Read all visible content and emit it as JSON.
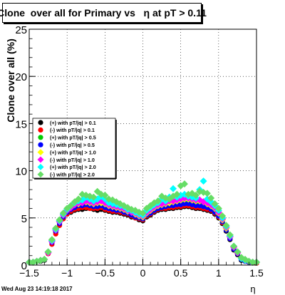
{
  "chart_data": {
    "type": "scatter",
    "title": "Clone  over all for Primary vs   η at pT > 0.11",
    "xlabel": "η",
    "ylabel": "Clone   over all (%)",
    "xlim": [
      -1.5,
      1.5
    ],
    "ylim": [
      0,
      25
    ],
    "x_ticks": [
      "−1.5",
      "−1",
      "−0.5",
      "0",
      "0.5",
      "1",
      "1.5"
    ],
    "y_ticks": [
      "0",
      "5",
      "10",
      "15",
      "20",
      "25"
    ],
    "grid": true,
    "legend_position": "left-center",
    "timestamp": "Wed Aug 23 14:19:18 2017",
    "series": [
      {
        "name": "(+) with pT/|q| > 0.1",
        "color": "#000000",
        "marker": "circle",
        "x": [
          -1.5,
          -1.45,
          -1.4,
          -1.35,
          -1.3,
          -1.25,
          -1.2,
          -1.15,
          -1.1,
          -1.05,
          -1.0,
          -0.95,
          -0.9,
          -0.85,
          -0.8,
          -0.75,
          -0.7,
          -0.65,
          -0.6,
          -0.55,
          -0.5,
          -0.45,
          -0.4,
          -0.35,
          -0.3,
          -0.25,
          -0.2,
          -0.15,
          -0.1,
          -0.05,
          0.0,
          0.05,
          0.1,
          0.15,
          0.2,
          0.25,
          0.3,
          0.35,
          0.4,
          0.45,
          0.5,
          0.55,
          0.6,
          0.65,
          0.7,
          0.75,
          0.8,
          0.85,
          0.9,
          0.95,
          1.0,
          1.05,
          1.1,
          1.15,
          1.2,
          1.25,
          1.3,
          1.35,
          1.4,
          1.45,
          1.5
        ],
        "y": [
          0.3,
          0.3,
          0.4,
          0.4,
          0.5,
          1.3,
          2.4,
          3.5,
          4.3,
          5.0,
          5.4,
          5.6,
          5.8,
          5.9,
          5.9,
          6.0,
          6.0,
          5.9,
          5.8,
          5.9,
          5.8,
          5.7,
          5.6,
          5.6,
          5.5,
          5.4,
          5.3,
          5.1,
          5.0,
          4.8,
          4.7,
          5.1,
          5.3,
          5.6,
          5.8,
          5.9,
          5.9,
          6.0,
          6.0,
          6.1,
          6.1,
          6.2,
          6.2,
          6.1,
          6.0,
          6.0,
          5.9,
          5.8,
          5.7,
          5.4,
          5.0,
          4.4,
          3.6,
          2.7,
          1.6,
          1.1,
          0.5,
          0.4,
          0.3,
          0.3,
          0.2
        ]
      },
      {
        "name": "(-) with pT/|q| > 0.1",
        "color": "#ff0000",
        "marker": "circle",
        "x": [
          -1.5,
          -1.45,
          -1.4,
          -1.35,
          -1.3,
          -1.25,
          -1.2,
          -1.15,
          -1.1,
          -1.05,
          -1.0,
          -0.95,
          -0.9,
          -0.85,
          -0.8,
          -0.75,
          -0.7,
          -0.65,
          -0.6,
          -0.55,
          -0.5,
          -0.45,
          -0.4,
          -0.35,
          -0.3,
          -0.25,
          -0.2,
          -0.15,
          -0.1,
          -0.05,
          0.0,
          0.05,
          0.1,
          0.15,
          0.2,
          0.25,
          0.3,
          0.35,
          0.4,
          0.45,
          0.5,
          0.55,
          0.6,
          0.65,
          0.7,
          0.75,
          0.8,
          0.85,
          0.9,
          0.95,
          1.0,
          1.05,
          1.1,
          1.15,
          1.2,
          1.25,
          1.3,
          1.35,
          1.4,
          1.45,
          1.5
        ],
        "y": [
          0.3,
          0.3,
          0.4,
          0.5,
          0.6,
          1.2,
          2.2,
          3.3,
          4.2,
          4.9,
          5.4,
          5.7,
          5.9,
          6.0,
          6.1,
          6.1,
          6.0,
          6.0,
          6.0,
          6.1,
          5.9,
          5.8,
          5.7,
          5.7,
          5.6,
          5.5,
          5.4,
          5.2,
          5.0,
          4.9,
          4.8,
          5.2,
          5.4,
          5.7,
          5.9,
          6.0,
          6.0,
          6.1,
          6.1,
          6.2,
          6.2,
          6.3,
          6.3,
          6.2,
          6.1,
          6.1,
          6.0,
          5.9,
          5.8,
          5.5,
          5.1,
          4.5,
          3.7,
          2.8,
          1.7,
          1.2,
          0.6,
          0.4,
          0.3,
          0.3,
          0.2
        ]
      },
      {
        "name": "(+) with pT/|q| > 0.5",
        "color": "#00cc00",
        "marker": "circle",
        "x": [
          -1.5,
          -1.45,
          -1.4,
          -1.35,
          -1.3,
          -1.25,
          -1.2,
          -1.15,
          -1.1,
          -1.05,
          -1.0,
          -0.95,
          -0.9,
          -0.85,
          -0.8,
          -0.75,
          -0.7,
          -0.65,
          -0.6,
          -0.55,
          -0.5,
          -0.45,
          -0.4,
          -0.35,
          -0.3,
          -0.25,
          -0.2,
          -0.15,
          -0.1,
          -0.05,
          0.0,
          0.05,
          0.1,
          0.15,
          0.2,
          0.25,
          0.3,
          0.35,
          0.4,
          0.45,
          0.5,
          0.55,
          0.6,
          0.65,
          0.7,
          0.75,
          0.8,
          0.85,
          0.9,
          0.95,
          1.0,
          1.05,
          1.1,
          1.15,
          1.2,
          1.25,
          1.3,
          1.35,
          1.4,
          1.45,
          1.5
        ],
        "y": [
          0.3,
          0.3,
          0.4,
          0.5,
          0.6,
          1.4,
          2.5,
          3.7,
          4.5,
          5.2,
          5.7,
          6.0,
          6.2,
          6.3,
          6.4,
          6.4,
          6.3,
          6.3,
          6.3,
          6.3,
          6.2,
          6.1,
          6.0,
          5.9,
          5.8,
          5.7,
          5.5,
          5.4,
          5.2,
          5.0,
          4.9,
          5.3,
          5.6,
          5.9,
          6.1,
          6.2,
          6.3,
          6.3,
          6.4,
          6.5,
          6.5,
          6.6,
          6.6,
          6.5,
          6.4,
          6.4,
          6.3,
          6.2,
          6.0,
          5.7,
          5.3,
          4.6,
          3.8,
          2.9,
          1.8,
          1.2,
          0.6,
          0.5,
          0.4,
          0.3,
          0.3
        ]
      },
      {
        "name": "(-) with pT/|q| > 0.5",
        "color": "#0000ff",
        "marker": "circle",
        "x": [
          -1.5,
          -1.45,
          -1.4,
          -1.35,
          -1.3,
          -1.25,
          -1.2,
          -1.15,
          -1.1,
          -1.05,
          -1.0,
          -0.95,
          -0.9,
          -0.85,
          -0.8,
          -0.75,
          -0.7,
          -0.65,
          -0.6,
          -0.55,
          -0.5,
          -0.45,
          -0.4,
          -0.35,
          -0.3,
          -0.25,
          -0.2,
          -0.15,
          -0.1,
          -0.05,
          0.0,
          0.05,
          0.1,
          0.15,
          0.2,
          0.25,
          0.3,
          0.35,
          0.4,
          0.45,
          0.5,
          0.55,
          0.6,
          0.65,
          0.7,
          0.75,
          0.8,
          0.85,
          0.9,
          0.95,
          1.0,
          1.05,
          1.1,
          1.15,
          1.2,
          1.25,
          1.3,
          1.35,
          1.4,
          1.45,
          1.5
        ],
        "y": [
          0.3,
          0.3,
          0.4,
          0.5,
          0.6,
          1.3,
          2.4,
          3.6,
          4.4,
          5.1,
          5.6,
          5.9,
          6.1,
          6.3,
          6.3,
          6.4,
          6.3,
          6.2,
          6.2,
          6.3,
          6.1,
          6.0,
          5.9,
          5.8,
          5.8,
          5.6,
          5.5,
          5.3,
          5.1,
          5.0,
          4.9,
          5.3,
          5.5,
          5.8,
          6.0,
          6.1,
          6.2,
          6.3,
          6.3,
          6.4,
          6.4,
          6.5,
          6.5,
          6.4,
          6.3,
          6.3,
          6.2,
          6.1,
          5.9,
          5.6,
          5.2,
          4.6,
          3.7,
          2.8,
          1.7,
          1.2,
          0.6,
          0.4,
          0.3,
          0.3,
          0.3
        ]
      },
      {
        "name": "(+) with pT/|q| > 1.0",
        "color": "#ffff00",
        "marker": "diamond",
        "x": [
          -1.5,
          -1.45,
          -1.4,
          -1.35,
          -1.3,
          -1.25,
          -1.2,
          -1.15,
          -1.1,
          -1.05,
          -1.0,
          -0.95,
          -0.9,
          -0.85,
          -0.8,
          -0.75,
          -0.7,
          -0.65,
          -0.6,
          -0.55,
          -0.5,
          -0.45,
          -0.4,
          -0.35,
          -0.3,
          -0.25,
          -0.2,
          -0.15,
          -0.1,
          -0.05,
          0.0,
          0.05,
          0.1,
          0.15,
          0.2,
          0.25,
          0.3,
          0.35,
          0.4,
          0.45,
          0.5,
          0.55,
          0.6,
          0.65,
          0.7,
          0.75,
          0.8,
          0.85,
          0.9,
          0.95,
          1.0,
          1.05,
          1.1,
          1.15,
          1.2,
          1.25,
          1.3,
          1.35,
          1.4,
          1.45,
          1.5
        ],
        "y": [
          0.3,
          0.3,
          0.4,
          0.5,
          0.6,
          1.4,
          2.6,
          3.8,
          4.6,
          5.3,
          5.8,
          6.1,
          6.4,
          6.5,
          6.6,
          6.7,
          6.6,
          6.5,
          6.6,
          6.6,
          6.5,
          6.3,
          6.2,
          6.1,
          6.0,
          5.9,
          5.7,
          5.6,
          5.4,
          5.2,
          5.1,
          5.5,
          5.8,
          6.1,
          6.3,
          6.4,
          6.5,
          6.6,
          6.7,
          6.8,
          6.9,
          7.0,
          7.0,
          6.9,
          6.8,
          6.8,
          6.7,
          6.5,
          6.3,
          6.0,
          5.5,
          4.8,
          3.9,
          3.0,
          1.9,
          1.3,
          0.7,
          0.5,
          0.4,
          0.3,
          0.3
        ]
      },
      {
        "name": "(-) with pT/|q| > 1.0",
        "color": "#ff00ff",
        "marker": "diamond",
        "x": [
          -1.5,
          -1.45,
          -1.4,
          -1.35,
          -1.3,
          -1.25,
          -1.2,
          -1.15,
          -1.1,
          -1.05,
          -1.0,
          -0.95,
          -0.9,
          -0.85,
          -0.8,
          -0.75,
          -0.7,
          -0.65,
          -0.6,
          -0.55,
          -0.5,
          -0.45,
          -0.4,
          -0.35,
          -0.3,
          -0.25,
          -0.2,
          -0.15,
          -0.1,
          -0.05,
          0.0,
          0.05,
          0.1,
          0.15,
          0.2,
          0.25,
          0.3,
          0.35,
          0.4,
          0.45,
          0.5,
          0.55,
          0.6,
          0.65,
          0.7,
          0.75,
          0.8,
          0.85,
          0.9,
          0.95,
          1.0,
          1.05,
          1.1,
          1.15,
          1.2,
          1.25,
          1.3,
          1.35,
          1.4,
          1.45,
          1.5
        ],
        "y": [
          0.3,
          0.3,
          0.4,
          0.5,
          0.6,
          1.3,
          2.5,
          3.7,
          4.6,
          5.3,
          5.8,
          6.1,
          6.4,
          6.6,
          6.6,
          6.8,
          6.7,
          6.6,
          6.7,
          6.8,
          6.6,
          6.4,
          6.3,
          6.2,
          6.1,
          6.0,
          5.8,
          5.6,
          5.5,
          5.3,
          5.2,
          5.6,
          5.9,
          6.2,
          6.4,
          6.5,
          6.6,
          6.8,
          6.8,
          6.9,
          7.0,
          7.1,
          7.1,
          7.0,
          6.9,
          6.9,
          6.7,
          6.6,
          6.4,
          6.1,
          5.6,
          4.9,
          4.0,
          3.0,
          1.9,
          1.3,
          0.7,
          0.5,
          0.4,
          0.3,
          0.3
        ]
      },
      {
        "name": "(+) with pT/|q| > 2.0",
        "color": "#00ffff",
        "marker": "diamond",
        "x": [
          -1.5,
          -1.45,
          -1.4,
          -1.35,
          -1.3,
          -1.25,
          -1.2,
          -1.15,
          -1.1,
          -1.05,
          -1.0,
          -0.95,
          -0.9,
          -0.85,
          -0.8,
          -0.75,
          -0.7,
          -0.65,
          -0.6,
          -0.55,
          -0.5,
          -0.45,
          -0.4,
          -0.35,
          -0.3,
          -0.25,
          -0.2,
          -0.15,
          -0.1,
          -0.05,
          0.0,
          0.05,
          0.1,
          0.15,
          0.2,
          0.25,
          0.3,
          0.35,
          0.4,
          0.45,
          0.5,
          0.55,
          0.6,
          0.65,
          0.7,
          0.75,
          0.8,
          0.85,
          0.9,
          0.95,
          1.0,
          1.05,
          1.1,
          1.15,
          1.2,
          1.25,
          1.3,
          1.35,
          1.4,
          1.45,
          1.5
        ],
        "y": [
          0.3,
          0.3,
          0.4,
          0.5,
          0.6,
          1.4,
          2.6,
          3.8,
          4.7,
          5.4,
          5.9,
          6.3,
          6.6,
          6.8,
          6.9,
          7.2,
          7.0,
          6.8,
          7.0,
          7.3,
          7.0,
          6.6,
          6.5,
          6.4,
          6.3,
          6.2,
          5.9,
          5.8,
          5.6,
          5.4,
          5.3,
          5.8,
          6.1,
          6.4,
          6.6,
          7.0,
          6.8,
          7.2,
          8.1,
          7.2,
          7.4,
          7.5,
          7.3,
          7.2,
          7.1,
          8.0,
          8.9,
          7.0,
          6.7,
          6.3,
          5.8,
          5.0,
          4.1,
          3.1,
          2.0,
          1.4,
          0.7,
          0.5,
          0.4,
          0.3,
          0.3
        ]
      },
      {
        "name": "(-) with pT/|q| > 2.0",
        "color": "#66dd66",
        "marker": "diamond",
        "x": [
          -1.5,
          -1.45,
          -1.4,
          -1.35,
          -1.3,
          -1.25,
          -1.2,
          -1.15,
          -1.1,
          -1.05,
          -1.0,
          -0.95,
          -0.9,
          -0.85,
          -0.8,
          -0.75,
          -0.7,
          -0.65,
          -0.6,
          -0.55,
          -0.5,
          -0.45,
          -0.4,
          -0.35,
          -0.3,
          -0.25,
          -0.2,
          -0.15,
          -0.1,
          -0.05,
          0.0,
          0.05,
          0.1,
          0.15,
          0.2,
          0.25,
          0.3,
          0.35,
          0.4,
          0.45,
          0.5,
          0.55,
          0.6,
          0.65,
          0.7,
          0.75,
          0.8,
          0.85,
          0.9,
          0.95,
          1.0,
          1.05,
          1.1,
          1.15,
          1.2,
          1.25,
          1.3,
          1.35,
          1.4,
          1.45,
          1.5
        ],
        "y": [
          0.3,
          0.3,
          0.4,
          0.5,
          0.6,
          1.4,
          2.7,
          3.9,
          4.8,
          5.5,
          6.0,
          6.3,
          6.7,
          7.0,
          7.5,
          7.4,
          7.3,
          7.2,
          7.8,
          7.5,
          7.4,
          7.0,
          6.9,
          6.7,
          6.5,
          6.3,
          6.1,
          5.9,
          5.8,
          5.6,
          5.5,
          6.0,
          6.3,
          6.6,
          6.8,
          7.3,
          7.1,
          7.0,
          7.3,
          7.5,
          8.4,
          8.6,
          7.5,
          7.6,
          7.4,
          7.8,
          7.7,
          7.6,
          7.1,
          6.5,
          6.0,
          5.2,
          4.2,
          3.2,
          2.0,
          1.4,
          0.8,
          0.6,
          0.4,
          0.3,
          0.3
        ]
      }
    ]
  }
}
